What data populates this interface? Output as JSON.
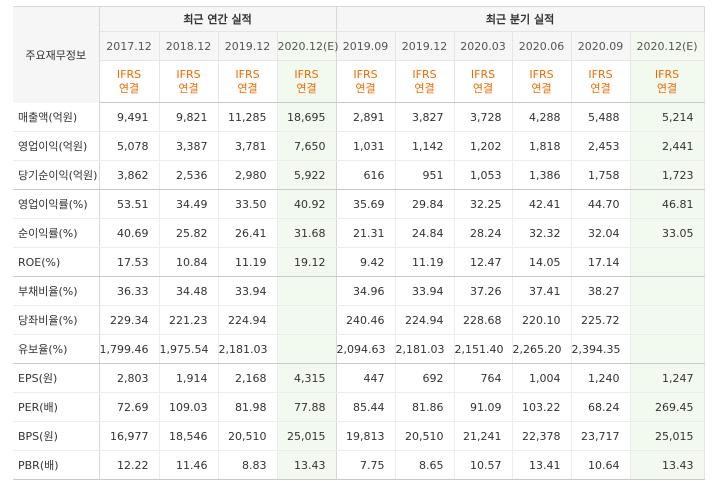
{
  "table": {
    "row_header": "주요재무정보",
    "groups": {
      "annual": "최근 연간 실적",
      "quarterly": "최근 분기 실적"
    },
    "columns": [
      {
        "period": "2017.12",
        "basis_top": "IFRS",
        "basis_bottom": "연결"
      },
      {
        "period": "2018.12",
        "basis_top": "IFRS",
        "basis_bottom": "연결"
      },
      {
        "period": "2019.12",
        "basis_top": "IFRS",
        "basis_bottom": "연결"
      },
      {
        "period": "2020.12(E)",
        "basis_top": "IFRS",
        "basis_bottom": "연결"
      },
      {
        "period": "2019.09",
        "basis_top": "IFRS",
        "basis_bottom": "연결"
      },
      {
        "period": "2019.12",
        "basis_top": "IFRS",
        "basis_bottom": "연결"
      },
      {
        "period": "2020.03",
        "basis_top": "IFRS",
        "basis_bottom": "연결"
      },
      {
        "period": "2020.06",
        "basis_top": "IFRS",
        "basis_bottom": "연결"
      },
      {
        "period": "2020.09",
        "basis_top": "IFRS",
        "basis_bottom": "연결"
      },
      {
        "period": "2020.12(E)",
        "basis_top": "IFRS",
        "basis_bottom": "연결"
      }
    ],
    "rows": [
      {
        "label": "매출액(억원)",
        "values": [
          "9,491",
          "9,821",
          "11,285",
          "18,695",
          "2,891",
          "3,827",
          "3,728",
          "4,288",
          "5,488",
          "5,214"
        ]
      },
      {
        "label": "영업이익(억원)",
        "values": [
          "5,078",
          "3,387",
          "3,781",
          "7,650",
          "1,031",
          "1,142",
          "1,202",
          "1,818",
          "2,453",
          "2,441"
        ]
      },
      {
        "label": "당기순이익(억원)",
        "values": [
          "3,862",
          "2,536",
          "2,980",
          "5,922",
          "616",
          "951",
          "1,053",
          "1,386",
          "1,758",
          "1,723"
        ]
      },
      {
        "label": "영업이익률(%)",
        "values": [
          "53.51",
          "34.49",
          "33.50",
          "40.92",
          "35.69",
          "29.84",
          "32.25",
          "42.41",
          "44.70",
          "46.81"
        ]
      },
      {
        "label": "순이익률(%)",
        "values": [
          "40.69",
          "25.82",
          "26.41",
          "31.68",
          "21.31",
          "24.84",
          "28.24",
          "32.32",
          "32.04",
          "33.05"
        ]
      },
      {
        "label": "ROE(%)",
        "values": [
          "17.53",
          "10.84",
          "11.19",
          "19.12",
          "9.42",
          "11.19",
          "12.47",
          "14.05",
          "17.14",
          ""
        ]
      },
      {
        "label": "부채비율(%)",
        "values": [
          "36.33",
          "34.48",
          "33.94",
          "",
          "34.96",
          "33.94",
          "37.26",
          "37.41",
          "38.27",
          ""
        ]
      },
      {
        "label": "당좌비율(%)",
        "values": [
          "229.34",
          "221.23",
          "224.94",
          "",
          "240.46",
          "224.94",
          "228.68",
          "220.10",
          "225.72",
          ""
        ]
      },
      {
        "label": "유보율(%)",
        "values": [
          "1,799.46",
          "1,975.54",
          "2,181.03",
          "",
          "2,094.63",
          "2,181.03",
          "2,151.40",
          "2,265.20",
          "2,394.35",
          ""
        ]
      },
      {
        "label": "EPS(원)",
        "values": [
          "2,803",
          "1,914",
          "2,168",
          "4,315",
          "447",
          "692",
          "764",
          "1,004",
          "1,240",
          "1,247"
        ]
      },
      {
        "label": "PER(배)",
        "values": [
          "72.69",
          "109.03",
          "81.98",
          "77.88",
          "85.44",
          "81.86",
          "91.09",
          "103.22",
          "68.24",
          "269.45"
        ]
      },
      {
        "label": "BPS(원)",
        "values": [
          "16,977",
          "18,546",
          "20,510",
          "25,015",
          "19,813",
          "20,510",
          "21,241",
          "22,378",
          "23,717",
          "25,015"
        ]
      },
      {
        "label": "PBR(배)",
        "values": [
          "12.22",
          "11.46",
          "8.83",
          "13.43",
          "7.75",
          "8.65",
          "10.57",
          "13.41",
          "10.64",
          "13.43"
        ]
      }
    ]
  }
}
